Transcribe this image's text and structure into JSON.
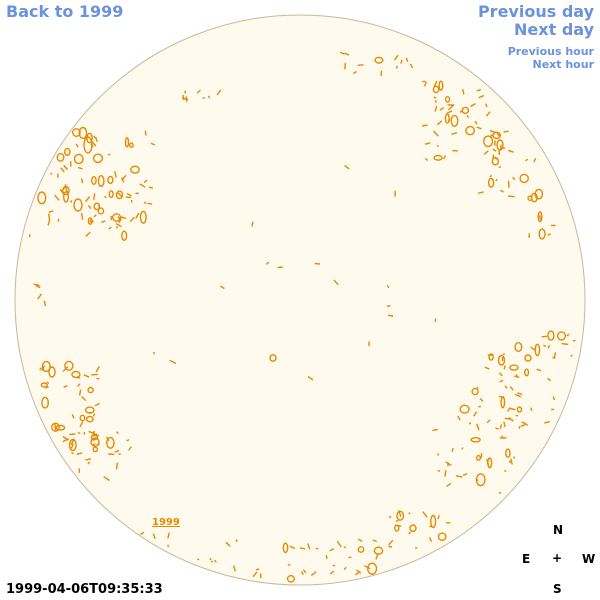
{
  "nav": {
    "back_label": "Back to 1999",
    "prev_day_label": "Previous day",
    "next_day_label": "Next day",
    "prev_hour_label": "Previous hour",
    "next_hour_label": "Next hour"
  },
  "map": {
    "year_label": "1999",
    "timestamp": "1999-04-06T09:35:33"
  },
  "compass": {
    "north": "N",
    "east": "E",
    "center": "+",
    "west": "W",
    "south": "S"
  },
  "colors": {
    "link": "#6b93dd",
    "disk_fill": "#fffaee",
    "disk_edge": "#c8b89a",
    "contour": "#e58a00"
  }
}
